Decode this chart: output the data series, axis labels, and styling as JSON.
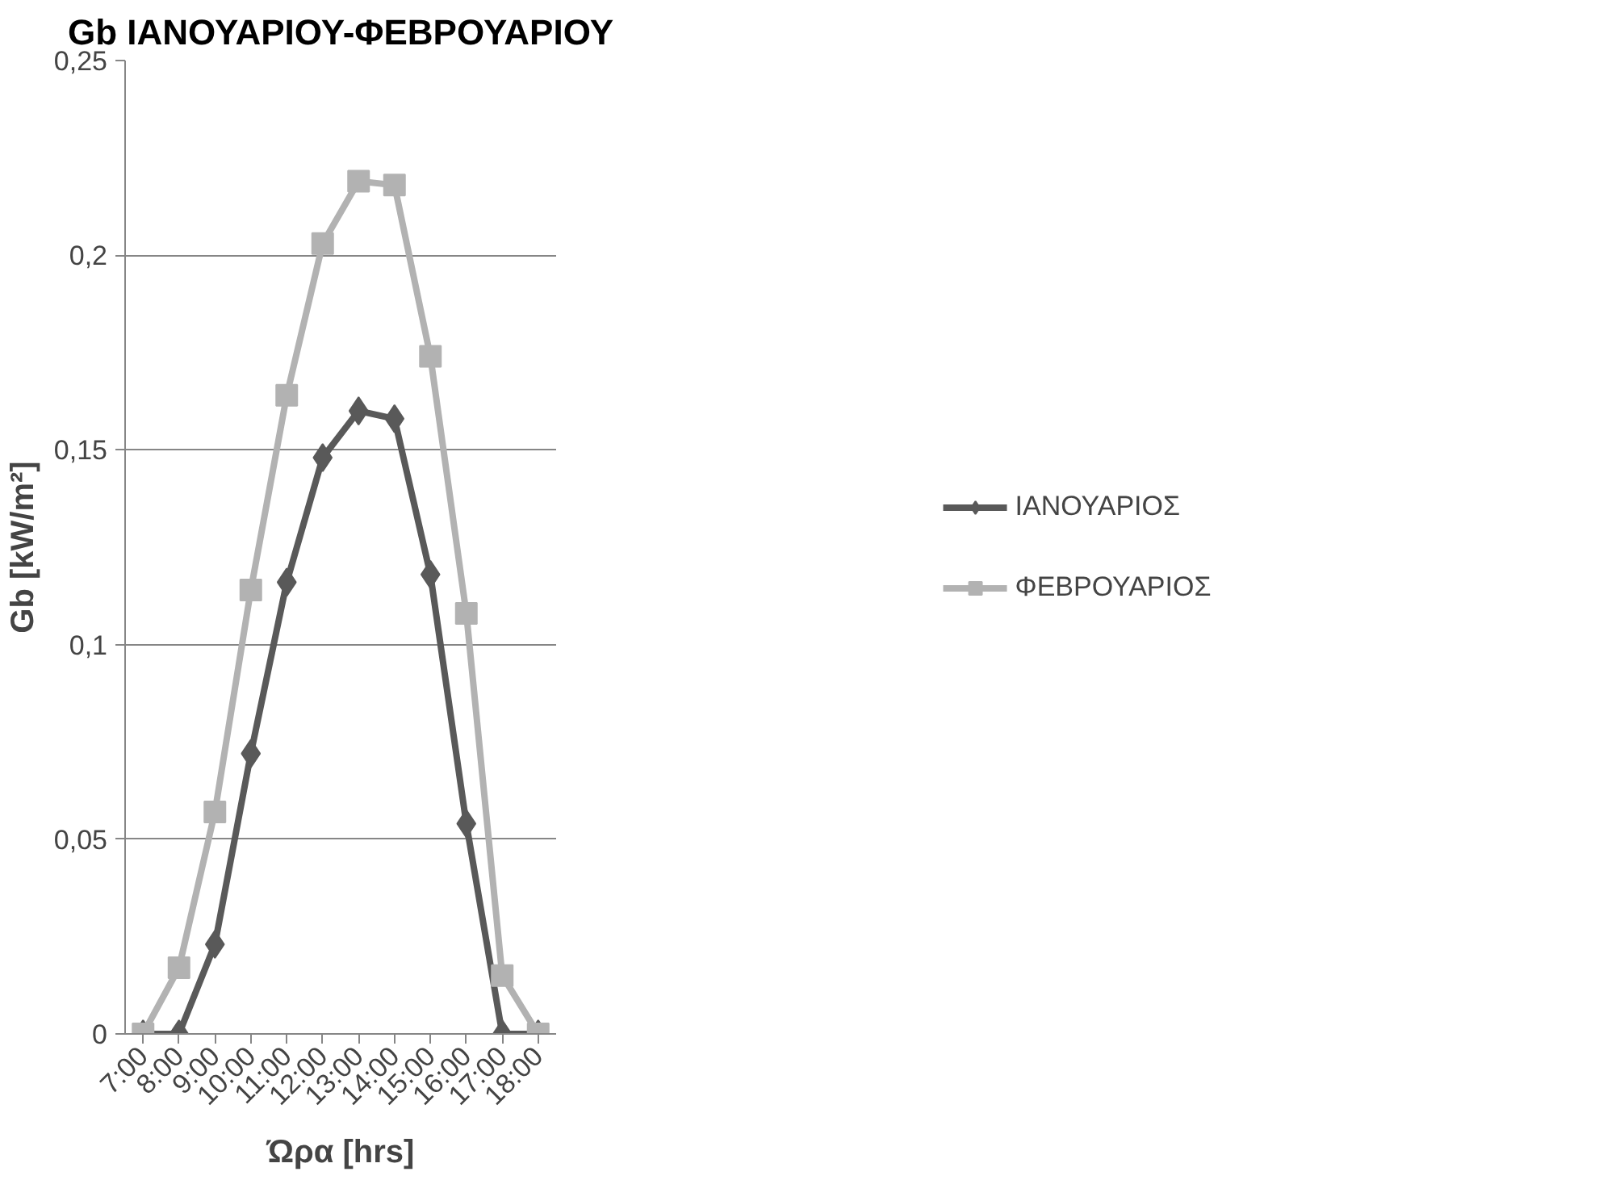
{
  "chart_data": {
    "type": "line",
    "title": "Gb ΙΑΝΟΥΑΡΙΟΥ-ΦΕΒΡΟΥΑΡΙΟΥ",
    "xlabel": "Ώρα [hrs]",
    "ylabel": "Gb [kW/m²]",
    "categories": [
      "7:00",
      "8:00",
      "9:00",
      "10:00",
      "11:00",
      "12:00",
      "13:00",
      "14:00",
      "15:00",
      "16:00",
      "17:00",
      "18:00"
    ],
    "series": [
      {
        "name": "ΙΑΝΟΥΑΡΙΟΣ",
        "color": "#595959",
        "marker": "diamond",
        "values": [
          0,
          0,
          0.023,
          0.072,
          0.116,
          0.148,
          0.16,
          0.158,
          0.118,
          0.054,
          0,
          0
        ]
      },
      {
        "name": "ΦΕΒΡΟΥΑΡΙΟΣ",
        "color": "#b2b2b2",
        "marker": "square",
        "values": [
          0,
          0.017,
          0.057,
          0.114,
          0.164,
          0.203,
          0.219,
          0.218,
          0.174,
          0.108,
          0.015,
          0
        ]
      }
    ],
    "ylim": [
      0,
      0.25
    ],
    "yticks": [
      0,
      {
        "value": 0.05,
        "label": "0,05"
      },
      {
        "value": 0.1,
        "label": "0,1"
      },
      {
        "value": 0.15,
        "label": "0,15"
      },
      {
        "value": 0.2,
        "label": "0,2"
      },
      {
        "value": 0.25,
        "label": "0,25"
      }
    ],
    "grid": "y",
    "legend": "right",
    "line_style": "solid"
  }
}
